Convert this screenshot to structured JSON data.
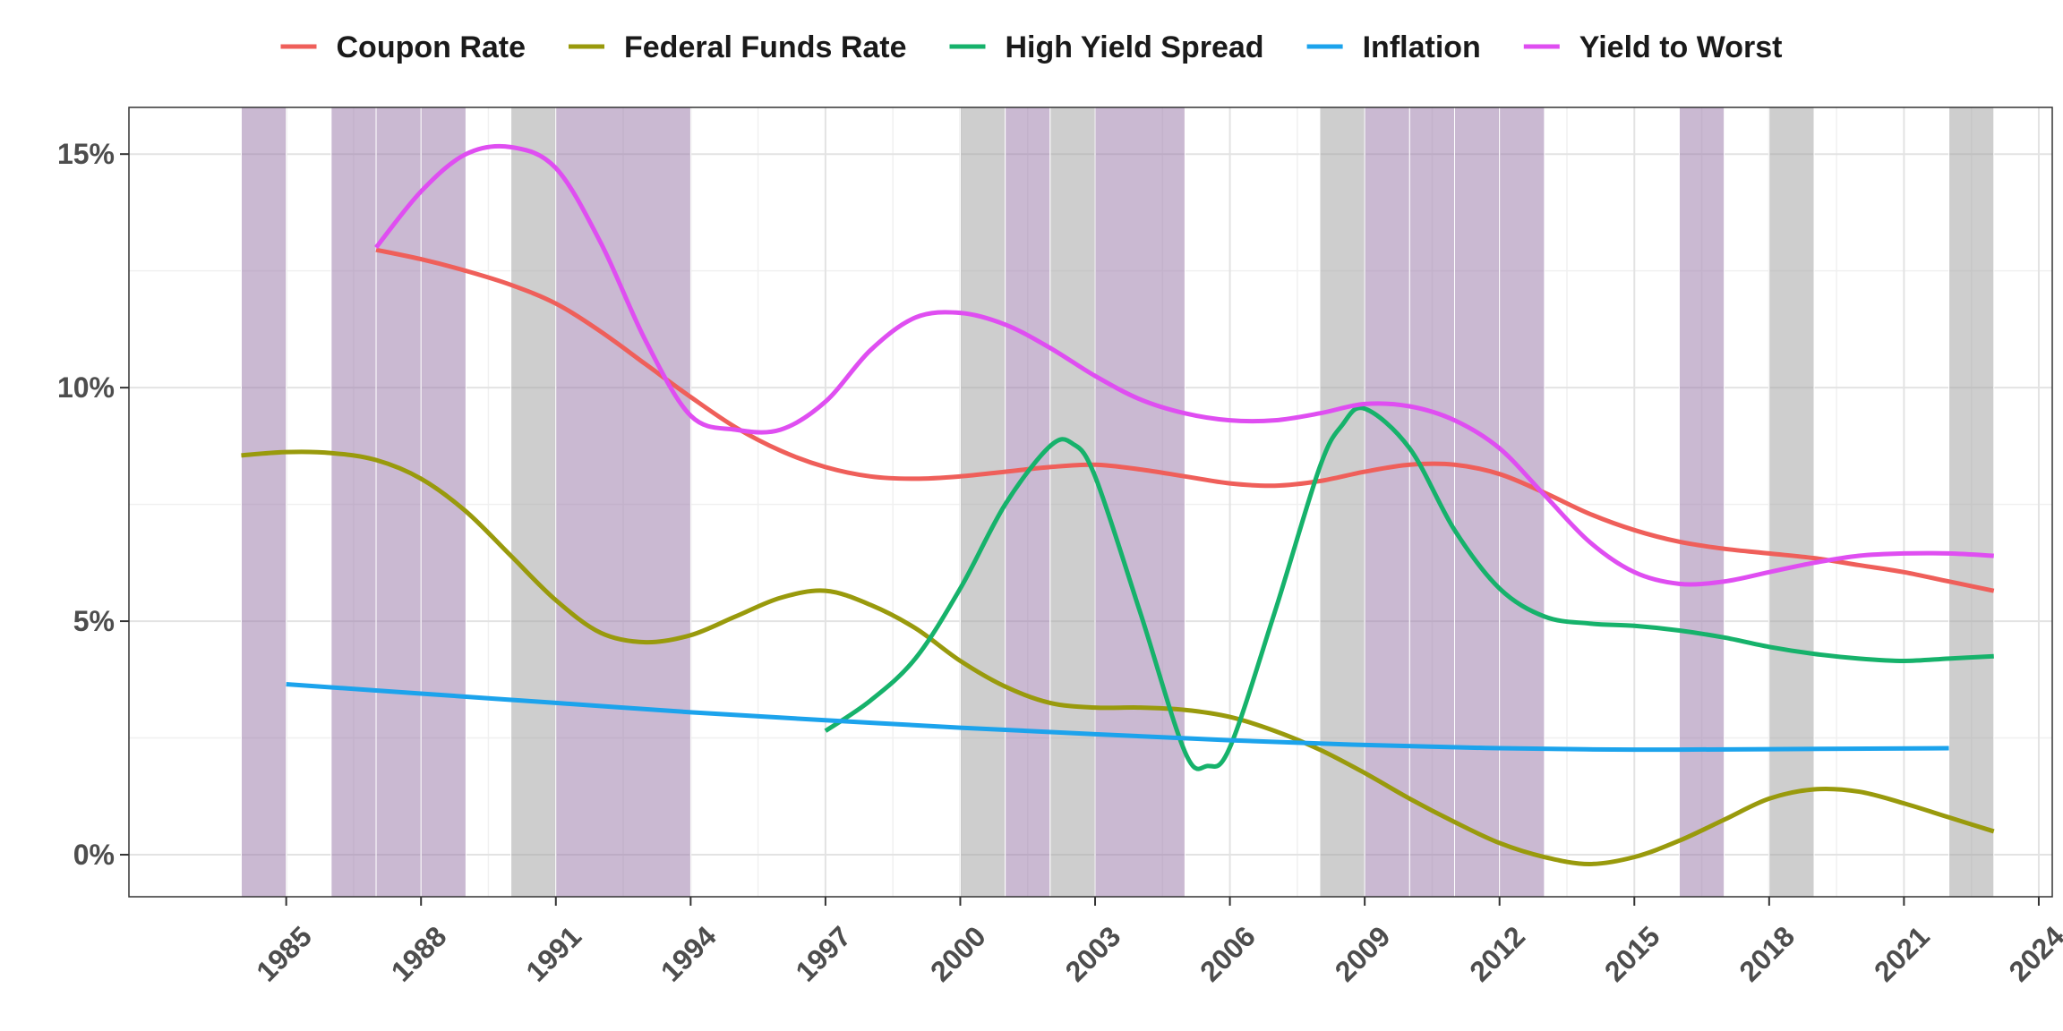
{
  "chart_data": {
    "type": "line",
    "title": "",
    "xlabel": "",
    "ylabel": "",
    "xlim": [
      1981.5,
      2024.3
    ],
    "ylim": [
      -0.9,
      16.0
    ],
    "x_ticks": [
      1985,
      1988,
      1991,
      1994,
      1997,
      2000,
      2003,
      2006,
      2009,
      2012,
      2015,
      2018,
      2021,
      2024
    ],
    "x_tick_labels": [
      "1985",
      "1988",
      "1991",
      "1994",
      "1997",
      "2000",
      "2003",
      "2006",
      "2009",
      "2012",
      "2015",
      "2018",
      "2021",
      "2024"
    ],
    "y_ticks": [
      0,
      5,
      10,
      15
    ],
    "y_tick_labels": [
      "0%",
      "5%",
      "10%",
      "15%"
    ],
    "grid": true,
    "legend_position": "top",
    "shaded_bands": [
      {
        "start": 1984,
        "end": 1985,
        "color": "#9e80ad"
      },
      {
        "start": 1986,
        "end": 1987,
        "color": "#9e80ad"
      },
      {
        "start": 1987,
        "end": 1988,
        "color": "#9e80ad"
      },
      {
        "start": 1988,
        "end": 1989,
        "color": "#9e80ad"
      },
      {
        "start": 1990,
        "end": 1991,
        "color": "#a6a6a6"
      },
      {
        "start": 1991,
        "end": 1994,
        "color": "#9e80ad"
      },
      {
        "start": 2000,
        "end": 2001,
        "color": "#a6a6a6"
      },
      {
        "start": 2001,
        "end": 2002,
        "color": "#9e80ad"
      },
      {
        "start": 2002,
        "end": 2003,
        "color": "#a6a6a6"
      },
      {
        "start": 2003,
        "end": 2005,
        "color": "#9e80ad"
      },
      {
        "start": 2008,
        "end": 2009,
        "color": "#a6a6a6"
      },
      {
        "start": 2009,
        "end": 2010,
        "color": "#9e80ad"
      },
      {
        "start": 2010,
        "end": 2011,
        "color": "#9e80ad"
      },
      {
        "start": 2011,
        "end": 2012,
        "color": "#9e80ad"
      },
      {
        "start": 2012,
        "end": 2013,
        "color": "#9e80ad"
      },
      {
        "start": 2016,
        "end": 2017,
        "color": "#9e80ad"
      },
      {
        "start": 2018,
        "end": 2019,
        "color": "#a6a6a6"
      },
      {
        "start": 2022,
        "end": 2023,
        "color": "#a6a6a6"
      }
    ],
    "series": [
      {
        "name": "Coupon Rate",
        "color": "#ef5f5a",
        "x": [
          1987,
          1988,
          1989,
          1990,
          1991,
          1992,
          1993,
          1994,
          1995,
          1996,
          1997,
          1998,
          1999,
          2000,
          2001,
          2002,
          2003,
          2004,
          2005,
          2006,
          2007,
          2008,
          2009,
          2010,
          2011,
          2012,
          2013,
          2014,
          2015,
          2016,
          2017,
          2018,
          2019,
          2020,
          2021,
          2022,
          2023
        ],
        "y": [
          12.95,
          12.75,
          12.5,
          12.2,
          11.8,
          11.2,
          10.5,
          9.8,
          9.15,
          8.65,
          8.3,
          8.1,
          8.05,
          8.1,
          8.2,
          8.3,
          8.35,
          8.25,
          8.1,
          7.95,
          7.9,
          8.0,
          8.2,
          8.35,
          8.35,
          8.15,
          7.75,
          7.3,
          6.95,
          6.7,
          6.55,
          6.45,
          6.35,
          6.2,
          6.05,
          5.85,
          5.65
        ]
      },
      {
        "name": "Federal Funds Rate",
        "color": "#999a0c",
        "x": [
          1984,
          1985,
          1986,
          1987,
          1988,
          1989,
          1990,
          1991,
          1992,
          1993,
          1994,
          1995,
          1996,
          1997,
          1998,
          1999,
          2000,
          2001,
          2002,
          2003,
          2004,
          2005,
          2006,
          2007,
          2008,
          2009,
          2010,
          2011,
          2012,
          2013,
          2014,
          2015,
          2016,
          2017,
          2018,
          2019,
          2020,
          2021,
          2022,
          2023
        ],
        "y": [
          8.55,
          8.62,
          8.6,
          8.45,
          8.05,
          7.35,
          6.4,
          5.45,
          4.75,
          4.55,
          4.7,
          5.1,
          5.5,
          5.65,
          5.35,
          4.85,
          4.15,
          3.6,
          3.25,
          3.15,
          3.15,
          3.1,
          2.95,
          2.65,
          2.25,
          1.75,
          1.2,
          0.7,
          0.25,
          -0.05,
          -0.2,
          -0.05,
          0.3,
          0.75,
          1.2,
          1.4,
          1.35,
          1.1,
          0.8,
          0.5
        ]
      },
      {
        "name": "High Yield Spread",
        "color": "#16b26b",
        "x": [
          1997,
          1998,
          1999,
          2000,
          2001,
          2002,
          2002.5,
          2003,
          2004,
          2005,
          2005.5,
          2006,
          2007,
          2008,
          2008.5,
          2009,
          2010,
          2011,
          2012,
          2013,
          2014,
          2015,
          2016,
          2017,
          2018,
          2019,
          2020,
          2021,
          2022,
          2023
        ],
        "y": [
          2.65,
          3.3,
          4.2,
          5.7,
          7.5,
          8.75,
          8.8,
          8.1,
          5.2,
          2.2,
          1.9,
          2.3,
          5.2,
          8.3,
          9.2,
          9.55,
          8.7,
          6.95,
          5.7,
          5.1,
          4.95,
          4.9,
          4.8,
          4.65,
          4.45,
          4.3,
          4.2,
          4.15,
          4.2,
          4.25
        ]
      },
      {
        "name": "Inflation",
        "color": "#1ca3ec",
        "x": [
          1985,
          1988,
          1991,
          1994,
          1997,
          2000,
          2003,
          2006,
          2009,
          2012,
          2015,
          2018,
          2022
        ],
        "y": [
          3.65,
          3.45,
          3.25,
          3.05,
          2.88,
          2.72,
          2.58,
          2.45,
          2.35,
          2.28,
          2.25,
          2.26,
          2.28
        ]
      },
      {
        "name": "Yield to Worst",
        "color": "#df4ef1",
        "x": [
          1987,
          1988,
          1989,
          1990,
          1991,
          1992,
          1993,
          1994,
          1995,
          1996,
          1997,
          1998,
          1999,
          2000,
          2001,
          2002,
          2003,
          2004,
          2005,
          2006,
          2007,
          2008,
          2009,
          2010,
          2011,
          2012,
          2013,
          2014,
          2015,
          2016,
          2017,
          2018,
          2019,
          2020,
          2021,
          2022,
          2023
        ],
        "y": [
          13.0,
          14.2,
          15.0,
          15.15,
          14.7,
          13.1,
          11.0,
          9.4,
          9.1,
          9.1,
          9.7,
          10.8,
          11.5,
          11.6,
          11.35,
          10.85,
          10.25,
          9.75,
          9.45,
          9.3,
          9.3,
          9.45,
          9.65,
          9.6,
          9.3,
          8.7,
          7.7,
          6.7,
          6.05,
          5.8,
          5.85,
          6.05,
          6.25,
          6.4,
          6.45,
          6.45,
          6.4
        ]
      }
    ]
  }
}
